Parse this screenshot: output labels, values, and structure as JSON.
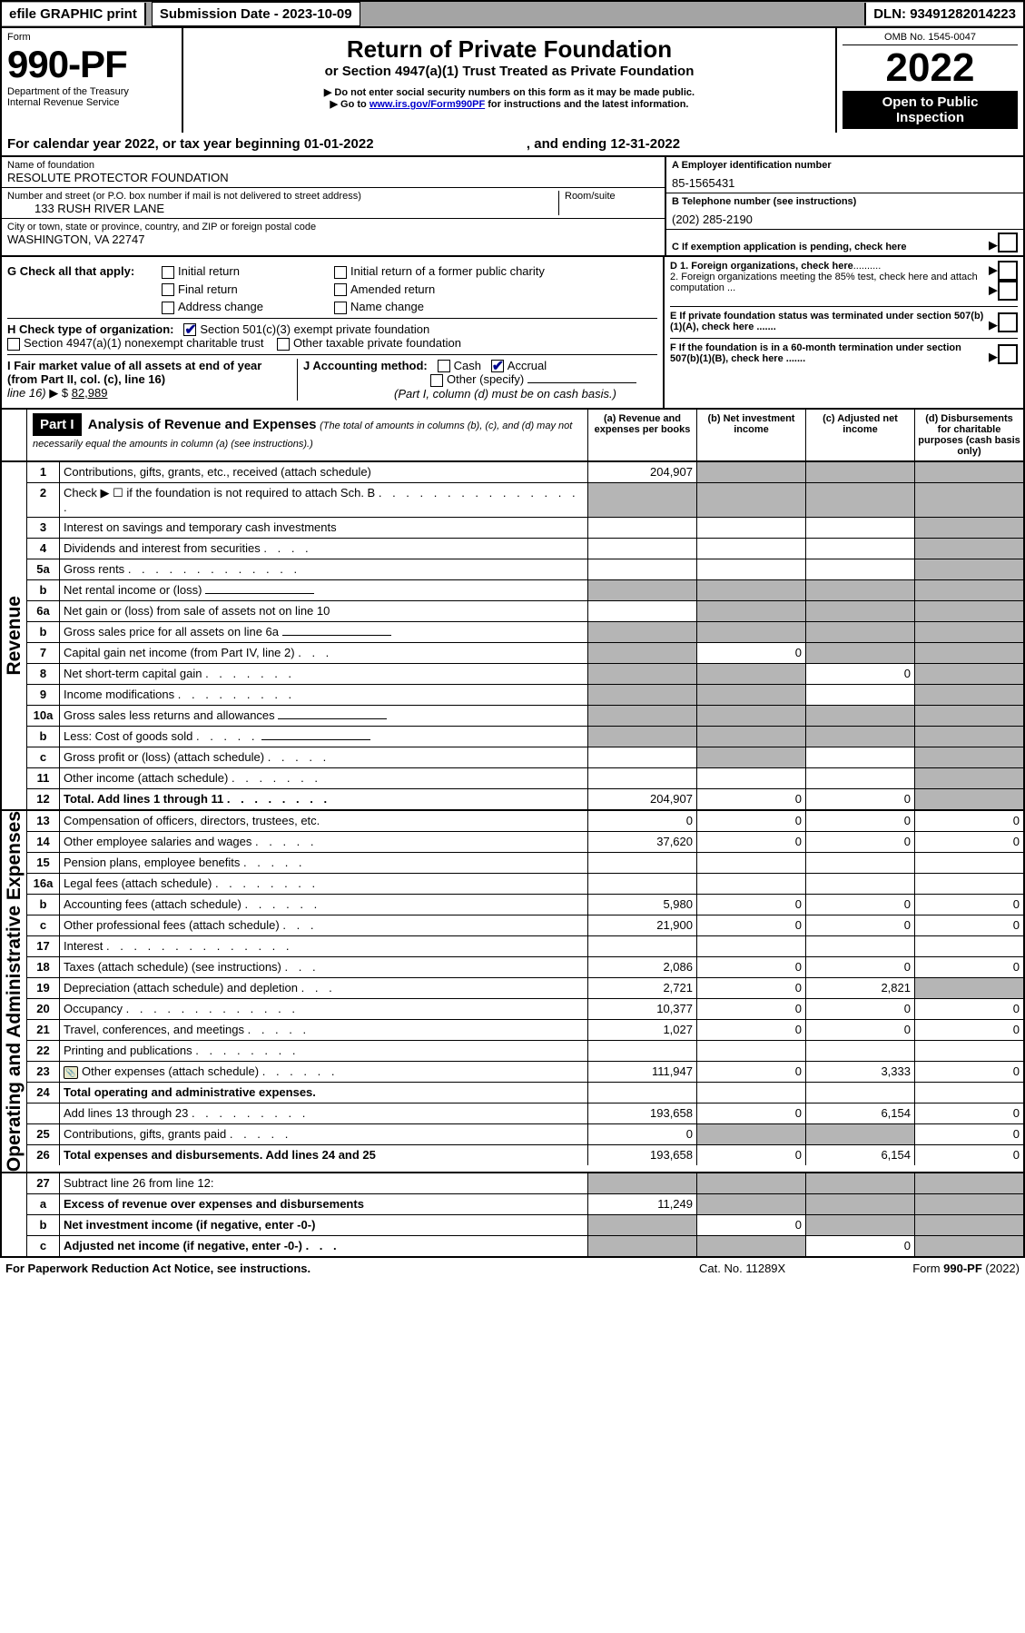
{
  "topbar": {
    "efile": "efile GRAPHIC print",
    "submission_label": "Submission Date - ",
    "submission_date": "2023-10-09",
    "dln_label": "DLN: ",
    "dln": "93491282014223"
  },
  "header": {
    "form_label": "Form",
    "form_no": "990-PF",
    "dept": "Department of the Treasury",
    "irs": "Internal Revenue Service",
    "title": "Return of Private Foundation",
    "subtitle": "or Section 4947(a)(1) Trust Treated as Private Foundation",
    "instr1": "Do not enter social security numbers on this form as it may be made public.",
    "instr2_pre": "Go to ",
    "instr2_link": "www.irs.gov/Form990PF",
    "instr2_post": " for instructions and the latest information.",
    "omb": "OMB No. 1545-0047",
    "year": "2022",
    "open": "Open to Public Inspection"
  },
  "calyear": {
    "pre": "For calendar year 2022, or tax year beginning ",
    "begin": "01-01-2022",
    "mid": ", and ending ",
    "end": "12-31-2022"
  },
  "entity": {
    "name_label": "Name of foundation",
    "name": "RESOLUTE PROTECTOR FOUNDATION",
    "addr_label": "Number and street (or P.O. box number if mail is not delivered to street address)",
    "addr": "133 RUSH RIVER LANE",
    "room_label": "Room/suite",
    "city_label": "City or town, state or province, country, and ZIP or foreign postal code",
    "city": "WASHINGTON, VA  22747",
    "a_label": "A Employer identification number",
    "a_val": "85-1565431",
    "b_label": "B Telephone number (see instructions)",
    "b_val": "(202) 285-2190",
    "c_label": "C If exemption application is pending, check here"
  },
  "g": {
    "label": "G Check all that apply:",
    "opts": [
      "Initial return",
      "Final return",
      "Address change",
      "Initial return of a former public charity",
      "Amended return",
      "Name change"
    ]
  },
  "h": {
    "label": "H Check type of organization:",
    "o1": "Section 501(c)(3) exempt private foundation",
    "o2": "Section 4947(a)(1) nonexempt charitable trust",
    "o3": "Other taxable private foundation"
  },
  "i": {
    "label": "I Fair market value of all assets at end of year (from Part II, col. (c), line 16)",
    "val_pre": "▶ $ ",
    "val": "82,989"
  },
  "j": {
    "label": "J Accounting method:",
    "cash": "Cash",
    "accrual": "Accrual",
    "other": "Other (specify)",
    "note": "(Part I, column (d) must be on cash basis.)"
  },
  "d": {
    "d1": "D 1. Foreign organizations, check here",
    "d2": "2. Foreign organizations meeting the 85% test, check here and attach computation ..."
  },
  "e": {
    "text": "E  If private foundation status was terminated under section 507(b)(1)(A), check here ......."
  },
  "f": {
    "text": "F  If the foundation is in a 60-month termination under section 507(b)(1)(B), check here ......."
  },
  "part1": {
    "label": "Part I",
    "title": "Analysis of Revenue and Expenses",
    "title_note": " (The total of amounts in columns (b), (c), and (d) may not necessarily equal the amounts in column (a) (see instructions).)",
    "cols": {
      "a": "(a)  Revenue and expenses per books",
      "b": "(b)  Net investment income",
      "c": "(c)  Adjusted net income",
      "d": "(d)  Disbursements for charitable purposes (cash basis only)"
    }
  },
  "sections": {
    "revenue": "Revenue",
    "opex": "Operating and Administrative Expenses"
  },
  "lines": [
    {
      "n": "1",
      "d": "Contributions, gifts, grants, etc., received (attach schedule)",
      "a": "204,907",
      "b_shade": true,
      "c_shade": true,
      "d_shade": true
    },
    {
      "n": "2",
      "d": "Check ▶ ☐ if the foundation is not required to attach Sch. B",
      "dots": ". . . . . . . . . . . . . . . .",
      "a_shade": true,
      "b_shade": true,
      "c_shade": true,
      "d_shade": true
    },
    {
      "n": "3",
      "d": "Interest on savings and temporary cash investments",
      "d_shade": true
    },
    {
      "n": "4",
      "d": "Dividends and interest from securities",
      "dots": ". . . .",
      "d_shade": true
    },
    {
      "n": "5a",
      "d": "Gross rents",
      "dots": ". . . . . . . . . . . . .",
      "d_shade": true
    },
    {
      "n": "b",
      "d": "Net rental income or (loss)",
      "box": true,
      "a_shade": true,
      "b_shade": true,
      "c_shade": true,
      "d_shade": true
    },
    {
      "n": "6a",
      "d": "Net gain or (loss) from sale of assets not on line 10",
      "b_shade": true,
      "c_shade": true,
      "d_shade": true
    },
    {
      "n": "b",
      "d": "Gross sales price for all assets on line 6a",
      "box": true,
      "a_shade": true,
      "b_shade": true,
      "c_shade": true,
      "d_shade": true
    },
    {
      "n": "7",
      "d": "Capital gain net income (from Part IV, line 2)",
      "dots": ". . .",
      "a_shade": true,
      "b": "0",
      "c_shade": true,
      "d_shade": true
    },
    {
      "n": "8",
      "d": "Net short-term capital gain",
      "dots": ". . . . . . .",
      "a_shade": true,
      "b_shade": true,
      "c": "0",
      "d_shade": true
    },
    {
      "n": "9",
      "d": "Income modifications",
      "dots": ". . . . . . . . .",
      "a_shade": true,
      "b_shade": true,
      "d_shade": true
    },
    {
      "n": "10a",
      "d": "Gross sales less returns and allowances",
      "box": true,
      "a_shade": true,
      "b_shade": true,
      "c_shade": true,
      "d_shade": true
    },
    {
      "n": "b",
      "d": "Less: Cost of goods sold",
      "dots": ". . . . .",
      "box": true,
      "a_shade": true,
      "b_shade": true,
      "c_shade": true,
      "d_shade": true
    },
    {
      "n": "c",
      "d": "Gross profit or (loss) (attach schedule)",
      "dots": ". . . . .",
      "b_shade": true,
      "d_shade": true
    },
    {
      "n": "11",
      "d": "Other income (attach schedule)",
      "dots": ". . . . . . .",
      "d_shade": true
    },
    {
      "n": "12",
      "d": "Total. Add lines 1 through 11",
      "dots": ". . . . . . . .",
      "bold": true,
      "a": "204,907",
      "b": "0",
      "c": "0",
      "d_shade": true
    }
  ],
  "opex_lines": [
    {
      "n": "13",
      "d": "Compensation of officers, directors, trustees, etc.",
      "a": "0",
      "b": "0",
      "c": "0",
      "dd": "0"
    },
    {
      "n": "14",
      "d": "Other employee salaries and wages",
      "dots": ". . . . .",
      "a": "37,620",
      "b": "0",
      "c": "0",
      "dd": "0"
    },
    {
      "n": "15",
      "d": "Pension plans, employee benefits",
      "dots": ". . . . ."
    },
    {
      "n": "16a",
      "d": "Legal fees (attach schedule)",
      "dots": ". . . . . . . ."
    },
    {
      "n": "b",
      "d": "Accounting fees (attach schedule)",
      "dots": ". . . . . .",
      "a": "5,980",
      "b": "0",
      "c": "0",
      "dd": "0"
    },
    {
      "n": "c",
      "d": "Other professional fees (attach schedule)",
      "dots": ". . .",
      "a": "21,900",
      "b": "0",
      "c": "0",
      "dd": "0"
    },
    {
      "n": "17",
      "d": "Interest",
      "dots": ". . . . . . . . . . . . . ."
    },
    {
      "n": "18",
      "d": "Taxes (attach schedule) (see instructions)",
      "dots": ". . .",
      "a": "2,086",
      "b": "0",
      "c": "0",
      "dd": "0"
    },
    {
      "n": "19",
      "d": "Depreciation (attach schedule) and depletion",
      "dots": ". . .",
      "a": "2,721",
      "b": "0",
      "c": "2,821",
      "d_shade": true
    },
    {
      "n": "20",
      "d": "Occupancy",
      "dots": ". . . . . . . . . . . . .",
      "a": "10,377",
      "b": "0",
      "c": "0",
      "dd": "0"
    },
    {
      "n": "21",
      "d": "Travel, conferences, and meetings",
      "dots": ". . . . .",
      "a": "1,027",
      "b": "0",
      "c": "0",
      "dd": "0"
    },
    {
      "n": "22",
      "d": "Printing and publications",
      "dots": ". . . . . . . ."
    },
    {
      "n": "23",
      "d": "Other expenses (attach schedule)",
      "dots": ". . . . . .",
      "icon": true,
      "a": "111,947",
      "b": "0",
      "c": "3,333",
      "dd": "0"
    },
    {
      "n": "24",
      "d": "Total operating and administrative expenses.",
      "bold": true,
      "noborder_bottom": true
    },
    {
      "n": "",
      "d": "Add lines 13 through 23",
      "dots": ". . . . . . . . .",
      "a": "193,658",
      "b": "0",
      "c": "6,154",
      "dd": "0"
    },
    {
      "n": "25",
      "d": "Contributions, gifts, grants paid",
      "dots": ". . . . .",
      "a": "0",
      "b_shade": true,
      "c_shade": true,
      "dd": "0"
    },
    {
      "n": "26",
      "d": "Total expenses and disbursements. Add lines 24 and 25",
      "bold": true,
      "a": "193,658",
      "b": "0",
      "c": "6,154",
      "dd": "0"
    }
  ],
  "bottom_lines": [
    {
      "n": "27",
      "d": "Subtract line 26 from line 12:",
      "a_shade": true,
      "b_shade": true,
      "c_shade": true,
      "d_shade": true
    },
    {
      "n": "a",
      "d": "Excess of revenue over expenses and disbursements",
      "bold": true,
      "a": "11,249",
      "b_shade": true,
      "c_shade": true,
      "d_shade": true
    },
    {
      "n": "b",
      "d": "Net investment income (if negative, enter -0-)",
      "bold": true,
      "a_shade": true,
      "b": "0",
      "c_shade": true,
      "d_shade": true
    },
    {
      "n": "c",
      "d": "Adjusted net income (if negative, enter -0-)",
      "bold": true,
      "dots": ". . .",
      "a_shade": true,
      "b_shade": true,
      "c": "0",
      "d_shade": true
    }
  ],
  "footer": {
    "left": "For Paperwork Reduction Act Notice, see instructions.",
    "mid": "Cat. No. 11289X",
    "right": "Form 990-PF (2022)"
  }
}
